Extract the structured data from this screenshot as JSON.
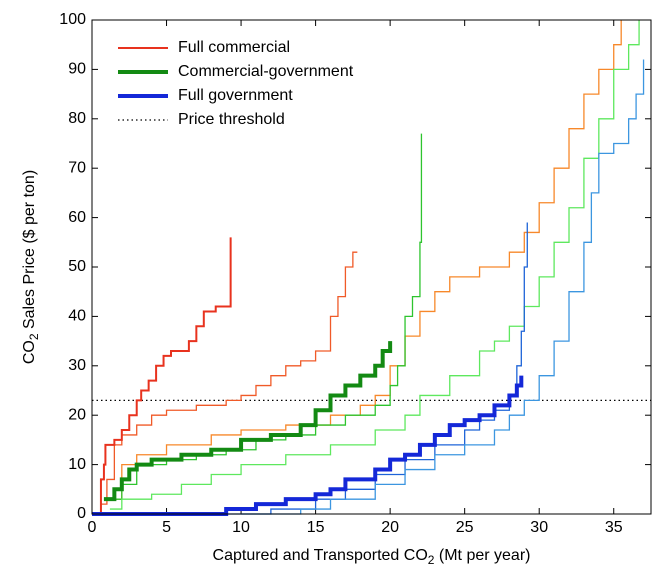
{
  "chart_data": {
    "type": "step",
    "xlabel": {
      "pre": "Captured and Transported CO",
      "sub": "2",
      "post": " (Mt per year)"
    },
    "ylabel": {
      "pre": "CO",
      "sub": "2",
      "post": " Sales Price ($ per ton)"
    },
    "xlim": [
      0,
      37.5
    ],
    "ylim": [
      0,
      100
    ],
    "xticks": [
      0,
      5,
      10,
      15,
      20,
      25,
      30,
      35
    ],
    "yticks": [
      0,
      10,
      20,
      30,
      40,
      50,
      60,
      70,
      80,
      90,
      100
    ],
    "groups": [
      {
        "name": "Full commercial",
        "color": "#e8321e",
        "width": 2,
        "lines": [
          {
            "color": "#e8321e",
            "x": [
              0.5,
              0.6,
              0.8,
              0.9,
              1.5,
              2,
              2.5,
              3,
              3.3,
              3.8,
              4.3,
              4.8,
              5.3,
              6.5,
              7,
              7.5,
              8.3,
              9.3
            ],
            "values": [
              0,
              7,
              10,
              14,
              15,
              17,
              20,
              23,
              25,
              27,
              30,
              32,
              33,
              35,
              38,
              41,
              42,
              56
            ]
          },
          {
            "color": "#f05a28",
            "x": [
              0.6,
              1,
              1.5,
              2,
              3,
              4,
              5,
              7,
              9,
              10,
              11,
              12,
              13,
              14,
              15,
              16,
              16.5,
              17,
              17.5,
              17.8
            ],
            "values": [
              2,
              7,
              14,
              16,
              18,
              20,
              21,
              22,
              23,
              24,
              26,
              28,
              30,
              31,
              33,
              40,
              44,
              50,
              53,
              53
            ]
          },
          {
            "color": "#f7882a",
            "x": [
              0.8,
              2,
              3,
              5,
              8,
              10,
              13,
              16,
              18,
              19,
              20,
              21,
              22,
              23,
              24,
              26,
              28,
              29,
              30,
              31,
              32,
              33,
              34,
              35,
              35.5
            ],
            "values": [
              3,
              10,
              12,
              14,
              16,
              17,
              18,
              20,
              22,
              24,
              30,
              36,
              41,
              45,
              48,
              50,
              53,
              57,
              63,
              70,
              78,
              85,
              90,
              95,
              100
            ]
          }
        ]
      },
      {
        "name": "Commercial-government",
        "color": "#138a13",
        "width": 4,
        "lines": [
          {
            "color": "#138a13",
            "x": [
              0.8,
              1.5,
              2,
              2.5,
              3,
              4,
              6,
              8,
              10,
              12,
              14,
              15,
              16,
              17,
              18,
              19,
              19.5,
              20
            ],
            "values": [
              3,
              5,
              7,
              9,
              10,
              11,
              12,
              13,
              15,
              16,
              18,
              21,
              24,
              26,
              28,
              30,
              33,
              35
            ]
          },
          {
            "color": "#2ec42e",
            "x": [
              1,
              2,
              3,
              5,
              7,
              9,
              11,
              13,
              15,
              17,
              19,
              20,
              20.5,
              21,
              21.5,
              22,
              22.1
            ],
            "values": [
              3,
              6,
              10,
              11,
              12,
              13,
              15,
              16,
              18,
              20,
              22,
              26,
              30,
              40,
              44,
              55,
              77
            ]
          },
          {
            "color": "#5ee85e",
            "x": [
              1.2,
              2,
              4,
              6,
              8,
              10,
              13,
              16,
              19,
              21,
              22,
              24,
              26,
              27,
              28,
              29,
              30,
              31,
              32,
              33,
              34,
              35,
              36,
              36.7
            ],
            "values": [
              1,
              3,
              4,
              6,
              8,
              10,
              12,
              14,
              17,
              20,
              24,
              28,
              33,
              35,
              38,
              42,
              48,
              55,
              62,
              72,
              80,
              90,
              95,
              100
            ]
          }
        ]
      },
      {
        "name": "Full government",
        "color": "#1428d8",
        "width": 4,
        "lines": [
          {
            "color": "#1428d8",
            "x": [
              0,
              8.5,
              9,
              11,
              13,
              15,
              16,
              17,
              19,
              20,
              21,
              22,
              23,
              24,
              25,
              26,
              27,
              28,
              28.5,
              28.8
            ],
            "values": [
              0,
              0,
              1,
              2,
              3,
              4,
              5,
              7,
              9,
              11,
              12,
              14,
              16,
              18,
              19,
              20,
              22,
              24,
              26,
              28
            ]
          },
          {
            "color": "#1e64d8",
            "x": [
              9,
              12,
              15,
              17,
              19,
              21,
              23,
              25,
              26,
              27,
              28,
              28.5,
              28.8,
              29,
              29.2
            ],
            "values": [
              0,
              1,
              3,
              5,
              8,
              11,
              14,
              17,
              19,
              21,
              24,
              30,
              37,
              50,
              59
            ]
          },
          {
            "color": "#3c96e0",
            "x": [
              10,
              14,
              16,
              19,
              21,
              23,
              25,
              27,
              28,
              29,
              30,
              31,
              32,
              33,
              33.5,
              34,
              35,
              36,
              36.5,
              37
            ],
            "values": [
              0,
              1,
              3,
              6,
              9,
              12,
              14,
              17,
              20,
              23,
              28,
              35,
              45,
              55,
              65,
              73,
              75,
              80,
              85,
              92
            ]
          }
        ]
      }
    ],
    "threshold": {
      "name": "Price threshold",
      "value": 23,
      "color": "#000000"
    }
  }
}
